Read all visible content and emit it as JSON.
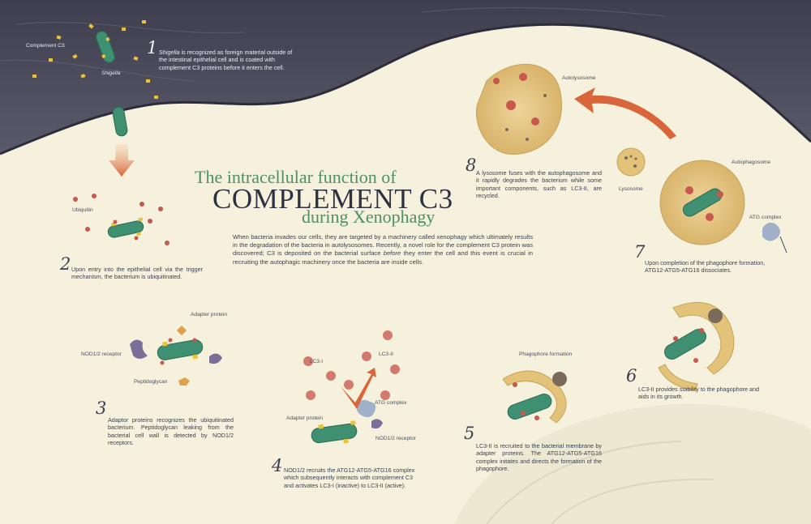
{
  "title": {
    "line1": "The intracellular function of",
    "line2": "COMPLEMENT C3",
    "line3": "during Xenophagy"
  },
  "intro": {
    "part1": "When bacteria invades our cells, they are targeted by a machinery called xenophagy which ultimately results in the degradation of the bacteria in autolysosomes. Recently, a novel role for the complement C3 protein was discovered; C3 is deposited on the bacterial surface ",
    "emphasis": "before",
    "part2": " they enter the cell and this event is crucial in recruiting the autophagic machinery once the bacteria are inside cells."
  },
  "steps": [
    {
      "number": "1",
      "emphasis": "Shigella",
      "text": " is recognized as foreign material outside of the intestinal epithelial cell and is coated with complement C3 proteins before it enters the cell."
    },
    {
      "number": "2",
      "text": "Upon entry into the epithelial cell via the trigger mechanism, the bacterium is ubiquitinated."
    },
    {
      "number": "3",
      "text": "Adaptor proteins recognizes the ubiquitinated bacterium. Peptidoglycan leaking from the bacterial cell wall is detected by NOD1/2 receptors."
    },
    {
      "number": "4",
      "text": "NOD1/2 recruits the ATG12-ATG5-ATG16 complex which subsequently interacts with complement C3 and activates LC3-I (inactive) to LC3-II (active)."
    },
    {
      "number": "5",
      "text": "LC3-II is recruited to the bacterial membrane by adapter proteins. The ATG12-ATG5-ATG16 complex initates and directs the formation of the phagophore."
    },
    {
      "number": "6",
      "text": "LC3-II provides stability to the phagophore and aids in its growth."
    },
    {
      "number": "7",
      "text": "Upon completion of the phagophore formation, ATG12-ATG5-ATG16 dissociates."
    },
    {
      "number": "8",
      "text": "A lysosome fuses with the autophagosome and it rapidly degrades the bacterium while some important components, such as LC3-II, are recycled."
    }
  ],
  "labels": {
    "complement_c3": "Complement C3",
    "shigella": "Shigella",
    "ubiquitin": "Ubiquitin",
    "adapter_protein": "Adapter protein",
    "nod_receptor": "NOD1/2 receptor",
    "peptidoglycan": "Peptidoglycan",
    "lc3_i": "LC3-I",
    "lc3_ii": "LC3-II",
    "atg_complex": "ATG complex",
    "adapter_protein_4": "Adapter protein",
    "nod_receptor_4": "NOD1/2 receptor",
    "phagophore_formation": "Phagophore formation",
    "autolysosome": "Autolysosome",
    "lysosome": "Lysosome",
    "autophagosome": "Autophagosome",
    "atg_complex_7": "ATG complex"
  },
  "colors": {
    "background": "#f6f1dc",
    "outside_dark": "#4a4a5a",
    "title_green": "#4e8f63",
    "title_dark": "#2e3142",
    "bacterium": "#3f8f72",
    "c3_yellow": "#e9c23a",
    "ubiquitin_red": "#c8584e",
    "arrow_orange": "#d9653b",
    "vesicle": "#e3c27a",
    "atg_blue": "#9fb0c8",
    "nod_purple": "#7a6f98"
  }
}
